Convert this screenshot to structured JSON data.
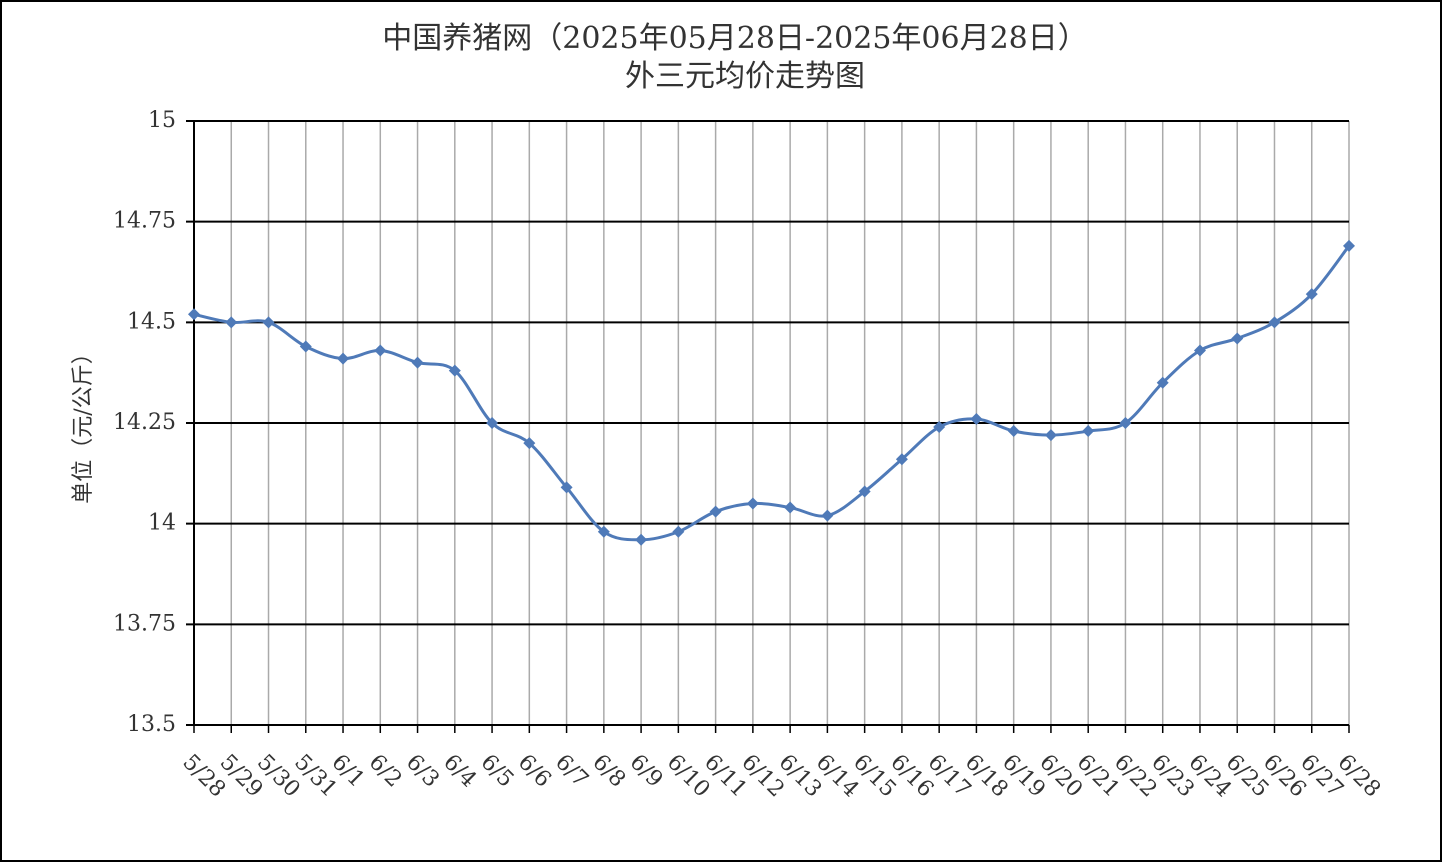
{
  "chart_data": {
    "type": "line",
    "title": "中国养猪网（2025年05月28日-2025年06月28日）",
    "subtitle": "外三元均价走势图",
    "y_label": "单位（元/公斤）",
    "categories": [
      "5/28",
      "5/29",
      "5/30",
      "5/31",
      "6/1",
      "6/2",
      "6/3",
      "6/4",
      "6/5",
      "6/6",
      "6/7",
      "6/8",
      "6/9",
      "6/10",
      "6/11",
      "6/12",
      "6/13",
      "6/14",
      "6/15",
      "6/16",
      "6/17",
      "6/18",
      "6/19",
      "6/20",
      "6/21",
      "6/22",
      "6/23",
      "6/24",
      "6/25",
      "6/26",
      "6/27",
      "6/28"
    ],
    "series": [
      {
        "name": "外三元",
        "color": "#4f7ab8",
        "values": [
          14.52,
          14.5,
          14.5,
          14.44,
          14.41,
          14.43,
          14.4,
          14.38,
          14.25,
          14.2,
          14.09,
          13.98,
          13.96,
          13.98,
          14.03,
          14.05,
          14.04,
          14.02,
          14.08,
          14.16,
          14.24,
          14.26,
          14.23,
          14.22,
          14.23,
          14.25,
          14.35,
          14.43,
          14.46,
          14.5,
          14.57,
          14.69
        ]
      }
    ],
    "ylim": [
      13.5,
      15
    ],
    "yticks": [
      13.5,
      13.75,
      14,
      14.25,
      14.5,
      14.75,
      15
    ],
    "grid": true
  }
}
